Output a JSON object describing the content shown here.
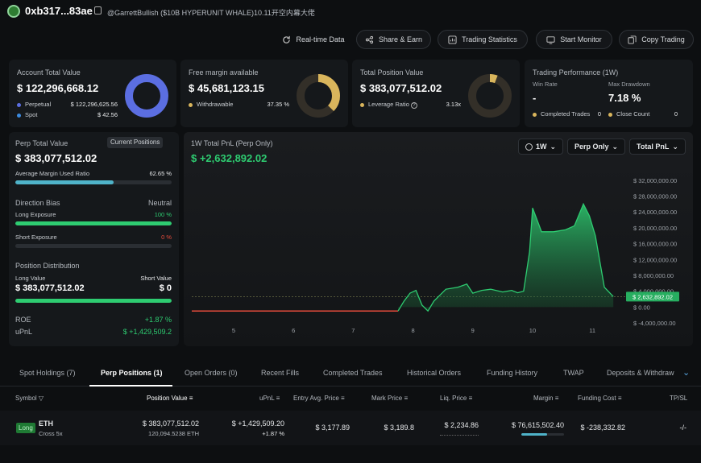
{
  "header": {
    "address": "0xb317...83ae",
    "subtitle": "@GarrettBullish ($10B HYPERUNIT WHALE)10.11开空内幕大佬"
  },
  "actions": [
    {
      "label": "Real-time Data",
      "icon": "refresh-icon"
    },
    {
      "label": "Share & Earn",
      "icon": "share-icon"
    },
    {
      "label": "Trading Statistics",
      "icon": "chart-icon"
    },
    {
      "label": "Start Monitor",
      "icon": "monitor-icon"
    },
    {
      "label": "Copy Trading",
      "icon": "copy-icon"
    }
  ],
  "account": {
    "title": "Account Total Value",
    "value": "$ 122,296,668.12",
    "perp_label": "Perpetual",
    "perp_value": "$ 122,296,625.56",
    "spot_label": "Spot",
    "spot_value": "$ 42.56",
    "perp_color": "#5b6ee1",
    "spot_color": "#3c8be0"
  },
  "margin": {
    "title": "Free margin available",
    "value": "$ 45,681,123.15",
    "withdraw_label": "Withdrawable",
    "withdraw_value": "37.35 %",
    "color": "#d9b55c",
    "fraction": 0.3735
  },
  "position": {
    "title": "Total Position Value",
    "value": "$ 383,077,512.02",
    "leverage_label": "Leverage Ratio",
    "leverage_value": "3.13x",
    "color": "#d9b55c"
  },
  "performance": {
    "title": "Trading Performance (1W)",
    "win_rate_label": "Win Rate",
    "win_rate": "-",
    "drawdown_label": "Max Drawdown",
    "drawdown": "7.18 %",
    "completed_label": "Completed Trades",
    "completed": "0",
    "close_label": "Close Count",
    "close": "0"
  },
  "perp": {
    "title": "Perp Total Value",
    "current_btn": "Current Positions",
    "value": "$ 383,077,512.02",
    "margin_label": "Average Margin Used Ratio",
    "margin_value": "62.65 %",
    "margin_fraction": 0.6265,
    "bias_label": "Direction Bias",
    "bias_value": "Neutral",
    "long_label": "Long Exposure",
    "long_value": "100 %",
    "long_fraction": 1.0,
    "short_label": "Short Exposure",
    "short_value": "0 %",
    "short_fraction": 0,
    "dist_label": "Position Distribution",
    "long_value_label": "Long Value",
    "short_value_label": "Short Value",
    "long_total": "$ 383,077,512.02",
    "short_total": "$ 0",
    "dist_fraction": 1.0,
    "roe_label": "ROE",
    "roe": "+1.87 %",
    "upnl_label": "uPnL",
    "upnl": "$ +1,429,509.2"
  },
  "pnl_chart": {
    "title": "1W Total PnL (Perp Only)",
    "value": "$ +2,632,892.02",
    "range": "1W",
    "filter": "Perp Only",
    "metric": "Total PnL"
  },
  "chart_data": {
    "type": "area",
    "x": [
      "5",
      "6",
      "7",
      "8",
      "9",
      "10",
      "11"
    ],
    "yticks": [
      "$ 32,000,000.00",
      "$ 28,000,000.00",
      "$ 24,000,000.00",
      "$ 20,000,000.00",
      "$ 16,000,000.00",
      "$ 12,000,000.00",
      "$ 8,000,000.00",
      "$ 4,000,000.00",
      "$ 0.00",
      "$ -4,000,000.00"
    ],
    "ylim": [
      -4000000,
      34000000
    ],
    "current_label": "$ 2,632,892.02",
    "points": [
      [
        4.3,
        -1000000
      ],
      [
        7.75,
        -1000000
      ],
      [
        7.85,
        1500000
      ],
      [
        7.95,
        3500000
      ],
      [
        8.05,
        4200000
      ],
      [
        8.15,
        500000
      ],
      [
        8.25,
        -1000000
      ],
      [
        8.35,
        1500000
      ],
      [
        8.45,
        3000000
      ],
      [
        8.55,
        4500000
      ],
      [
        8.75,
        5000000
      ],
      [
        8.9,
        5800000
      ],
      [
        9.0,
        3500000
      ],
      [
        9.15,
        4200000
      ],
      [
        9.3,
        4500000
      ],
      [
        9.5,
        3800000
      ],
      [
        9.65,
        4200000
      ],
      [
        9.75,
        3600000
      ],
      [
        9.85,
        4000000
      ],
      [
        9.95,
        14000000
      ],
      [
        10.0,
        25000000
      ],
      [
        10.05,
        23000000
      ],
      [
        10.15,
        19000000
      ],
      [
        10.35,
        19000000
      ],
      [
        10.55,
        19500000
      ],
      [
        10.7,
        20500000
      ],
      [
        10.85,
        26000000
      ],
      [
        10.95,
        23000000
      ],
      [
        11.05,
        18000000
      ],
      [
        11.2,
        5000000
      ],
      [
        11.35,
        2632892
      ]
    ]
  },
  "tabs": [
    "Spot Holdings (7)",
    "Perp Positions (1)",
    "Open Orders (0)",
    "Recent Fills",
    "Completed Trades",
    "Historical Orders",
    "Funding History",
    "TWAP",
    "Deposits & Withdraw"
  ],
  "columns": {
    "symbol": "Symbol",
    "position_value": "Position Value",
    "upnl": "uPnL",
    "entry": "Entry Avg. Price",
    "mark": "Mark Price",
    "liq": "Liq. Price",
    "margin": "Margin",
    "funding": "Funding Cost",
    "tpsl": "TP/SL"
  },
  "rows": [
    {
      "side": "Long",
      "symbol": "ETH",
      "mode": "Cross 5x",
      "position_value": "$ 383,077,512.02",
      "size": "120,094.5238 ETH",
      "upnl": "$ +1,429,509.20",
      "upnl_pct": "+1.87 %",
      "entry": "$ 3,177.89",
      "mark": "$ 3,189.8",
      "liq": "$ 2,234.86",
      "margin": "$ 76,615,502.40",
      "funding": "$ -238,332.82",
      "tpsl": "-/-"
    }
  ]
}
